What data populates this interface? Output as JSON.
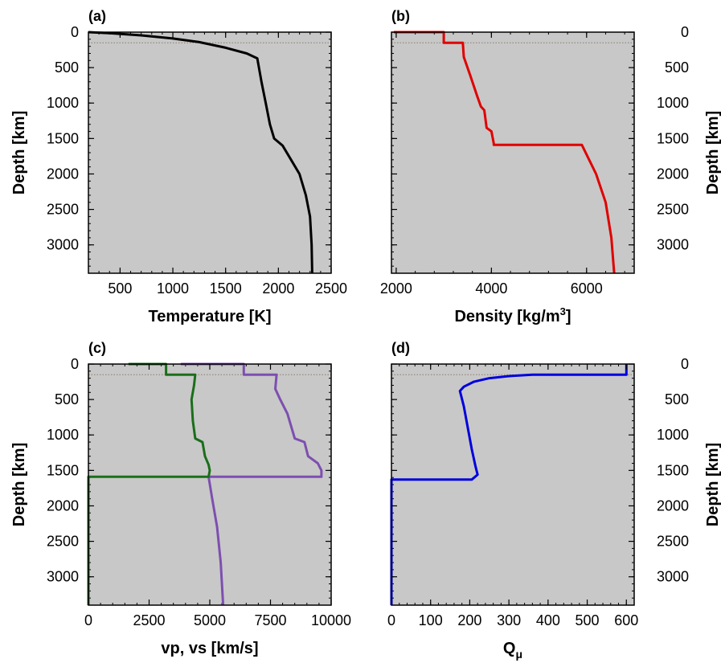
{
  "figure": {
    "background": "#ffffff",
    "panel_background": "#c8c8c8"
  },
  "chart_data": [
    {
      "panel": "(a)",
      "type": "line",
      "xlabel": "Temperature [K]",
      "ylabel": "Depth [km]",
      "y_axis_side": "left",
      "xlim": [
        200,
        2500
      ],
      "ylim": [
        0,
        3400
      ],
      "y_inverted": true,
      "xticks": [
        500,
        1000,
        1500,
        2000,
        2500
      ],
      "yticks": [
        0,
        500,
        1000,
        1500,
        2000,
        2500,
        3000
      ],
      "grid": false,
      "reference_line_depth": 150,
      "series": [
        {
          "color": "#000000",
          "points": [
            [
              200,
              0
            ],
            [
              400,
              15
            ],
            [
              700,
              45
            ],
            [
              1000,
              90
            ],
            [
              1250,
              140
            ],
            [
              1500,
              220
            ],
            [
              1700,
              300
            ],
            [
              1800,
              370
            ],
            [
              1840,
              700
            ],
            [
              1880,
              1000
            ],
            [
              1920,
              1300
            ],
            [
              1960,
              1500
            ],
            [
              2040,
              1600
            ],
            [
              2120,
              1800
            ],
            [
              2200,
              2000
            ],
            [
              2260,
              2300
            ],
            [
              2300,
              2600
            ],
            [
              2315,
              3000
            ],
            [
              2320,
              3400
            ]
          ]
        }
      ]
    },
    {
      "panel": "(b)",
      "type": "line",
      "xlabel": "Density [kg/m",
      "xlabel_sup": "3",
      "xlabel_end": "]",
      "ylabel": "Depth [km]",
      "y_axis_side": "right",
      "xlim": [
        1900,
        7000
      ],
      "ylim": [
        0,
        3400
      ],
      "y_inverted": true,
      "xticks": [
        2000,
        4000,
        6000
      ],
      "yticks": [
        0,
        500,
        1000,
        1500,
        2000,
        2500,
        3000
      ],
      "grid": false,
      "reference_line_depth": 150,
      "series": [
        {
          "color": "#e00000",
          "points": [
            [
              1950,
              0
            ],
            [
              3000,
              0
            ],
            [
              3000,
              150
            ],
            [
              3400,
              150
            ],
            [
              3420,
              350
            ],
            [
              3550,
              600
            ],
            [
              3700,
              900
            ],
            [
              3780,
              1050
            ],
            [
              3850,
              1100
            ],
            [
              3900,
              1350
            ],
            [
              4000,
              1400
            ],
            [
              4050,
              1570
            ],
            [
              4050,
              1590
            ],
            [
              5900,
              1590
            ],
            [
              6200,
              2000
            ],
            [
              6400,
              2400
            ],
            [
              6520,
              2900
            ],
            [
              6580,
              3400
            ]
          ]
        }
      ]
    },
    {
      "panel": "(c)",
      "type": "line",
      "xlabel": "vp, vs [km/s]",
      "ylabel": "Depth [km]",
      "y_axis_side": "left",
      "xlim": [
        0,
        10000
      ],
      "ylim": [
        0,
        3400
      ],
      "y_inverted": true,
      "xticks": [
        0,
        2500,
        5000,
        7500,
        10000
      ],
      "yticks": [
        0,
        500,
        1000,
        1500,
        2000,
        2500,
        3000
      ],
      "grid": false,
      "reference_line_depth": 150,
      "series": [
        {
          "color": "#7d4fb0",
          "points": [
            [
              3800,
              0
            ],
            [
              6400,
              0
            ],
            [
              6400,
              150
            ],
            [
              7750,
              150
            ],
            [
              7700,
              350
            ],
            [
              7900,
              500
            ],
            [
              8200,
              700
            ],
            [
              8500,
              1050
            ],
            [
              8900,
              1100
            ],
            [
              9050,
              1300
            ],
            [
              9450,
              1400
            ],
            [
              9600,
              1500
            ],
            [
              9600,
              1590
            ],
            [
              4950,
              1590
            ],
            [
              5100,
              1900
            ],
            [
              5300,
              2300
            ],
            [
              5450,
              2800
            ],
            [
              5550,
              3400
            ]
          ]
        },
        {
          "color": "#1a6e1a",
          "points": [
            [
              1650,
              0
            ],
            [
              3200,
              0
            ],
            [
              3200,
              150
            ],
            [
              4400,
              150
            ],
            [
              4350,
              300
            ],
            [
              4250,
              500
            ],
            [
              4300,
              800
            ],
            [
              4400,
              1050
            ],
            [
              4700,
              1100
            ],
            [
              4800,
              1300
            ],
            [
              4950,
              1420
            ],
            [
              5000,
              1500
            ],
            [
              4950,
              1590
            ],
            [
              0,
              1590
            ],
            [
              0,
              3400
            ]
          ]
        }
      ]
    },
    {
      "panel": "(d)",
      "type": "line",
      "xlabel": "Q",
      "xlabel_sub": "μ",
      "ylabel": "Depth [km]",
      "y_axis_side": "right",
      "xlim": [
        0,
        620
      ],
      "ylim": [
        0,
        3400
      ],
      "y_inverted": true,
      "xticks": [
        0,
        100,
        200,
        300,
        400,
        500,
        600
      ],
      "yticks": [
        0,
        500,
        1000,
        1500,
        2000,
        2500,
        3000
      ],
      "grid": false,
      "reference_line_depth": 150,
      "series": [
        {
          "color": "#0000dd",
          "points": [
            [
              600,
              0
            ],
            [
              600,
              150
            ],
            [
              360,
              150
            ],
            [
              300,
              170
            ],
            [
              250,
              200
            ],
            [
              210,
              250
            ],
            [
              185,
              320
            ],
            [
              175,
              380
            ],
            [
              185,
              600
            ],
            [
              195,
              900
            ],
            [
              205,
              1200
            ],
            [
              215,
              1450
            ],
            [
              220,
              1560
            ],
            [
              205,
              1630
            ],
            [
              0,
              1630
            ],
            [
              0,
              3400
            ]
          ]
        }
      ]
    }
  ]
}
